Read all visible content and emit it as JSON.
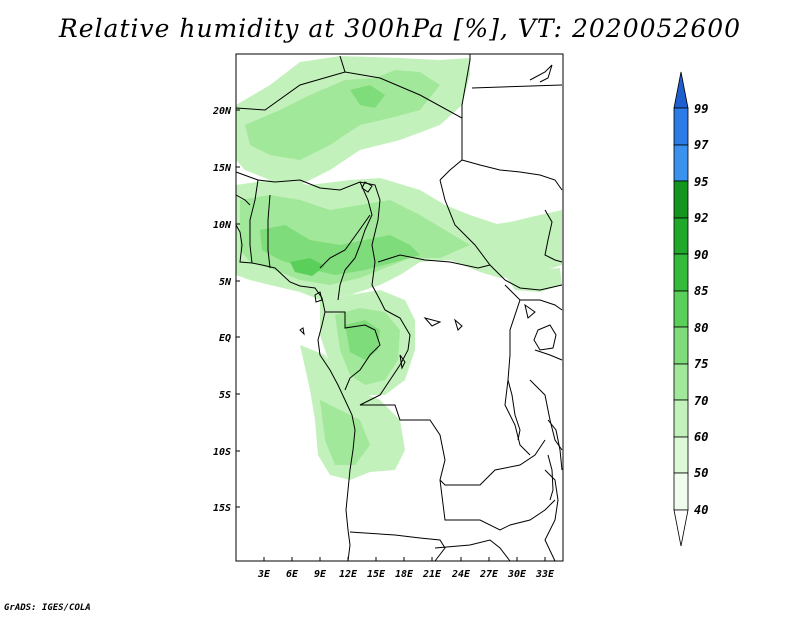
{
  "title": "Relative humidity at 300hPa [%], VT: 2020052600",
  "credit": "GrADS: IGES/COLA",
  "map": {
    "lon_range": [
      0,
      35
    ],
    "lat_range": [
      -20,
      25
    ],
    "lat_labels": [
      "20N",
      "15N",
      "10N",
      "5N",
      "EQ",
      "5S",
      "10S",
      "15S"
    ],
    "lon_labels": [
      "3E",
      "6E",
      "9E",
      "12E",
      "15E",
      "18E",
      "21E",
      "24E",
      "27E",
      "30E",
      "33E"
    ]
  },
  "colorbar": {
    "title": "",
    "levels": [
      "99",
      "97",
      "95",
      "92",
      "90",
      "85",
      "80",
      "75",
      "70",
      "60",
      "50",
      "40"
    ],
    "colors": {
      "c99": "#1e5fcf",
      "c97": "#2b7ce6",
      "c95": "#3b92ee",
      "c92": "#14961e",
      "c90": "#1fa82a",
      "c85": "#34bb3c",
      "c80": "#5ad05a",
      "c75": "#7fdc7a",
      "c70": "#a2e89a",
      "c60": "#c3f1bb",
      "c50": "#dcf8d6",
      "c40": "#f0fdee"
    }
  }
}
